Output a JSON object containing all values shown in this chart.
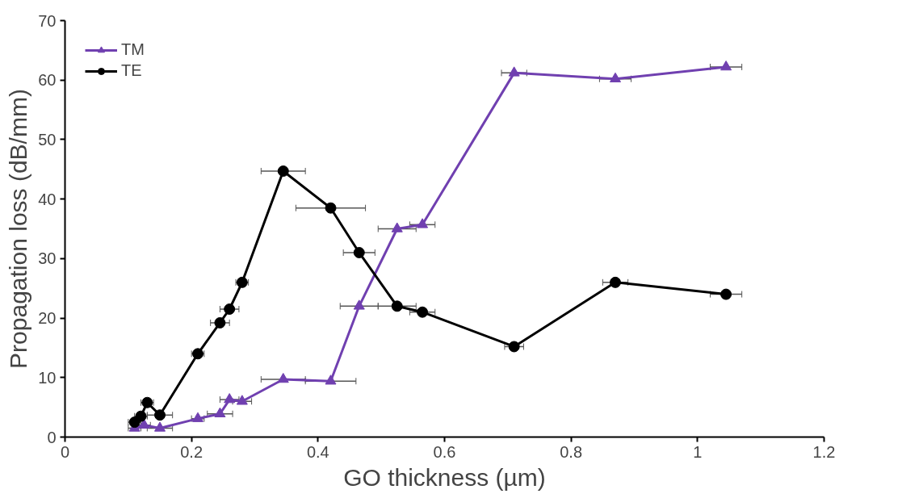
{
  "chart_data": {
    "type": "line",
    "xlabel": "GO thickness (µm)",
    "ylabel": "Propagation loss (dB/mm)",
    "xlim": [
      0,
      1.2
    ],
    "xticks": [
      0,
      {
        "value": 0.2,
        "label": "0.2"
      },
      {
        "value": 0.4,
        "label": "0.4"
      },
      {
        "value": 0.6,
        "label": "0.6"
      },
      {
        "value": 0.8,
        "label": "0.8"
      },
      1,
      {
        "value": 1.2,
        "label": "1.2"
      }
    ],
    "ylim": [
      0,
      70
    ],
    "yticks": [
      0,
      10,
      20,
      30,
      40,
      50,
      60,
      70
    ],
    "grid": false,
    "legend": "top left",
    "line_style": "solid",
    "series": [
      {
        "name": "TM",
        "color": "#7040b0",
        "marker": "triangle",
        "x": [
          0.11,
          0.125,
          0.15,
          0.21,
          0.245,
          0.26,
          0.28,
          0.345,
          0.42,
          0.465,
          0.525,
          0.565,
          0.71,
          0.87,
          1.045
        ],
        "values": [
          1.5,
          2,
          1.5,
          3.1,
          3.9,
          6.3,
          6,
          9.7,
          9.4,
          22,
          35,
          35.7,
          61.2,
          60.2,
          62.2
        ],
        "xerrors": [
          0.01,
          0.01,
          0.02,
          0.01,
          0.02,
          0.015,
          0.015,
          0.035,
          0.04,
          0.03,
          0.03,
          0.02,
          0.02,
          0.025,
          0.025
        ]
      },
      {
        "name": "TE",
        "color": "#000000",
        "marker": "circle",
        "x": [
          0.11,
          0.12,
          0.13,
          0.15,
          0.21,
          0.245,
          0.26,
          0.28,
          0.345,
          0.42,
          0.465,
          0.525,
          0.565,
          0.71,
          0.87,
          1.045
        ],
        "values": [
          2.5,
          3.5,
          5.8,
          3.7,
          14,
          19.2,
          21.5,
          26,
          44.7,
          38.5,
          31,
          22,
          21,
          15.2,
          26,
          24
        ],
        "xerrors": [
          0.01,
          0.01,
          0.01,
          0.02,
          0.01,
          0.015,
          0.015,
          0.01,
          0.035,
          0.055,
          0.025,
          0.03,
          0.02,
          0.015,
          0.02,
          0.025
        ]
      }
    ]
  }
}
